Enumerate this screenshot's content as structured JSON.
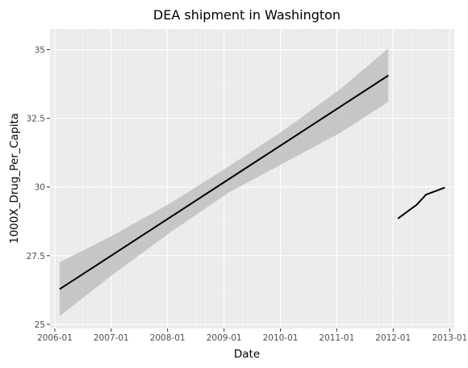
{
  "chart_data": {
    "type": "line",
    "title": "DEA shipment in Washington",
    "xlabel": "Date",
    "ylabel": "1000X_Drug_Per_Capita",
    "x_type": "date",
    "xlim": [
      "2005-12-01",
      "2013-01-31"
    ],
    "ylim": [
      24.85,
      35.75
    ],
    "x_ticks": [
      {
        "date": "2006-01-01",
        "label": "2006-01"
      },
      {
        "date": "2007-01-01",
        "label": "2007-01"
      },
      {
        "date": "2008-01-01",
        "label": "2008-01"
      },
      {
        "date": "2009-01-01",
        "label": "2009-01"
      },
      {
        "date": "2010-01-01",
        "label": "2010-01"
      },
      {
        "date": "2011-01-01",
        "label": "2011-01"
      },
      {
        "date": "2012-01-01",
        "label": "2012-01"
      },
      {
        "date": "2013-01-01",
        "label": "2013-01"
      }
    ],
    "y_ticks": [
      {
        "value": 25,
        "label": "25"
      },
      {
        "value": 27.5,
        "label": "27.5"
      },
      {
        "value": 30,
        "label": "30"
      },
      {
        "value": 32.5,
        "label": "32.5"
      },
      {
        "value": 35,
        "label": "35"
      }
    ],
    "grid": true,
    "series": [
      {
        "type": "line",
        "color": "#000000",
        "x": [
          "2006-02-01",
          "2011-12-01"
        ],
        "y": [
          26.28,
          34.06
        ]
      },
      {
        "type": "band",
        "color": "#c0c0c0",
        "x": [
          "2006-02-01",
          "2007-02-01",
          "2008-02-01",
          "2009-02-01",
          "2010-02-01",
          "2011-02-01",
          "2011-12-01"
        ],
        "y_lower": [
          25.3,
          26.9,
          28.4,
          29.8,
          30.9,
          32.0,
          33.1
        ],
        "y_upper": [
          27.25,
          28.3,
          29.45,
          30.75,
          32.1,
          33.6,
          35.05
        ]
      },
      {
        "type": "line",
        "color": "#000000",
        "x": [
          "2012-02-01",
          "2012-04-01",
          "2012-06-01",
          "2012-08-01",
          "2012-10-01",
          "2012-12-01"
        ],
        "y": [
          28.85,
          29.1,
          29.35,
          29.72,
          29.85,
          29.98
        ]
      }
    ]
  }
}
